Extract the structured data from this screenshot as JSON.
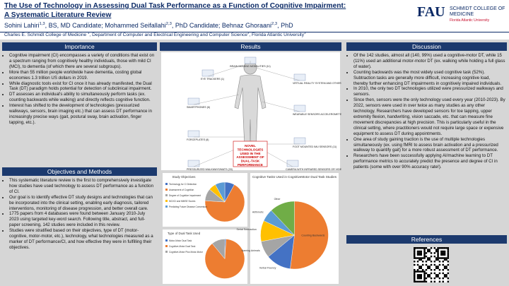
{
  "header": {
    "title_line1": "The Use of Technology in Assessing Dual Task Performance as a Function of Cognitive Impairment:",
    "title_line2": "A Systematic Literature Review",
    "authors": [
      {
        "name": "Sohini Lahiri",
        "sup": "1,3",
        "role": ", BS, MD Candidate; "
      },
      {
        "name": "Mohammed Seifallahi",
        "sup": "2,3",
        "role": ", PhD Candidate; "
      },
      {
        "name": "Behnaz Ghoraani",
        "sup": "2,3",
        "role": ", PhD"
      }
    ],
    "affiliation": [
      {
        "text": "Charles E. Schmidt College of Medicine ",
        "sup": "1"
      },
      {
        "text": ", Department of Computer and Electrical Engineering and Computer Science",
        "sup": "2"
      },
      {
        "text": ", Florida Atlantic University",
        "sup": "3"
      }
    ],
    "logo": {
      "main": "FAU",
      "college": "SCHMIDT COLLEGE OF MEDICINE",
      "university": "Florida Atlantic University"
    }
  },
  "importance": {
    "heading": "Importance",
    "bullets": [
      "Cognitive impairment (CI) encompasses a variety of conditions that exist on a spectrum ranging from cognitively healthy individuals, those with mild CI (MCI), to dementia (of which there are several subgroups).",
      "More than 55 million people worldwide have dementia, costing global economies 1.3 trillion US dollars in 2019.",
      "While diagnostic tools exist for CI once it has already manifested, the Dual Task (DT) paradigm holds potential for detection of subclinical impairment.",
      "DT assesses an individual's ability to simultaneously perform tasks (ex. counting backwards while walking) and directly reflects cognitive function.",
      "Interest has shifted to the development of technologies (pressurized walkways, sensors, brain imaging etc.) that can assess DT performance in increasingly precise ways (gait, postural sway, brain activation, finger tapping, etc.)."
    ]
  },
  "objectives": {
    "heading": "Objectives and Methods",
    "bullets": [
      "This systematic literature review is the first to comprehensively investigate how studies have used technology to assess DT performance as a function of CI.",
      "Our goal is to identify effective DT study designs and technologies that can be incorporated into the clinical setting, enabling early diagnosis, tailored interventions, monitoring of disease progression, and better overall care.",
      "1775 papers from 4 databases were found between January 2010-July 2023 using targeted key-word search. Following title, abstract, and full-paper screening, 142 studies were included in this review.",
      "Studies were stratified based on their objectives, type of DT (motor-cognitive, motor-motor, etc.), technology, what technologies measured as a marker of DT performance/CI, and how effective they were in fulfilling their objectives."
    ]
  },
  "results": {
    "heading": "Results",
    "figure": {
      "center": "NOVEL TECHNOLOGIES USED IN THE ASSESSMENT OF DUAL-TASK PERFORMANCE",
      "labels": [
        "EYE TRACKERS (1)",
        "BRAIN IMAGING MODALITIES (11)",
        "VIRTUAL REALITY SYSTEM AND OTHERS (4)",
        "SMARTPHONES (6)",
        "WEARABLE SENSORS ACCELEROMETER (31)",
        "FORCEPLATES (8)",
        "FOOT MOUNTED IMU SENSORS (11)",
        "PRESSURIZED WALKWAYS/MATS (33)",
        "CAMERA WITH INFRARED SENSORS OR VIDEO PROCESSING (9)"
      ]
    },
    "charts": [
      {
        "title": "Study Objectives",
        "labels": [
          "Technology for CI Detection",
          "Assessment of Cognition",
          "Degree of Cognitive Impairment",
          "MCI/CI and MMSE Scores",
          "Predicting Future Disease Conversion"
        ],
        "values": [
          8,
          68,
          10,
          6,
          8
        ],
        "colors": [
          "#4472c4",
          "#ed7d31",
          "#a5a5a5",
          "#ffc000",
          "#5b9bd5"
        ]
      },
      {
        "title": "Type of Dual Task Used",
        "labels": [
          "Motor-Motor Dual Task",
          "Cognitive-Motor Dual Task",
          "Cognitive-Motor Plus Motor-Motor"
        ],
        "values": [
          1,
          88,
          11
        ],
        "colors": [
          "#4472c4",
          "#ed7d31",
          "#a5a5a5"
        ]
      },
      {
        "title": "Cognitive Tasks Used in CognitiveMotor Dual Task Studies",
        "labels": [
          "Counting Backwards",
          "Verbal Fluency",
          "Naming Animals",
          "Serial Subtraction",
          "Arithmetic",
          "Other"
        ],
        "values": [
          52,
          12,
          8,
          10,
          6,
          12
        ],
        "colors": [
          "#ed7d31",
          "#4472c4",
          "#a5a5a5",
          "#ffc000",
          "#5b9bd5",
          "#70ad47"
        ]
      }
    ]
  },
  "discussion": {
    "heading": "Discussion",
    "bullets": [
      "Of the 142 studies, almost all (140, 99%) used a cognitive-motor DT, while 15 (11%) used an additional motor-motor DT (ex. walking while holding a full glass of water).",
      "Counting backwards was the most widely used cognitive task (52%). Subtraction tasks are generally more difficult, increasing cognitive load, thereby further enhancing DT impairments in cognitively impaired individuals.",
      "In 2010, the only two DT technologies utilized were pressurized walkways and sensors.",
      "Since then, sensors were the only technology used every year (2010-2023). By 2022, sensors were used in over twice as many studies as any other technology. Researchers have developed sensors for toe tapping, upper extremity flexion, handwriting, vision saccade, etc. that can measure fine movement discrepancies at high precision. This is particularly useful in the clinical setting, where practitioners would not require large space or expensive equipment to assess DT during appointments.",
      "One area of study gaining traction is the use of multiple technologies simultaneously (ex. using fMRI to assess brain activation and a pressurized walkway to quantify gait) for a more robust assessment of DT performance.",
      "Researchers have been successfully applying AI/machine learning to DT performance metrics to accurately predict the presence and degree of CI in patients (some with over 90% accuracy rate!)."
    ]
  },
  "references": {
    "heading": "References"
  }
}
